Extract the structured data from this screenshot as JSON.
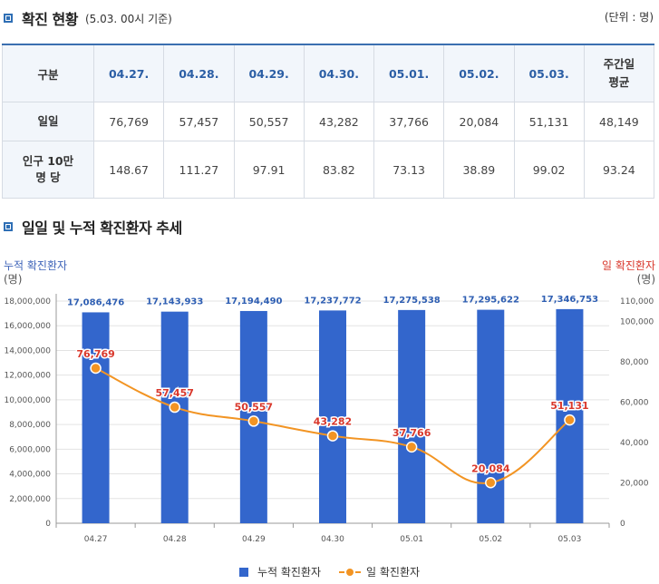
{
  "section1": {
    "title": "확진 현황",
    "note": "(5.03. 00시 기준)",
    "unit": "(단위 : 명)"
  },
  "table": {
    "headers": [
      "구분",
      "04.27.",
      "04.28.",
      "04.29.",
      "04.30.",
      "05.01.",
      "05.02.",
      "05.03.",
      "주간일 평균"
    ],
    "rows": [
      {
        "label": "일일",
        "values": [
          "76,769",
          "57,457",
          "50,557",
          "43,282",
          "37,766",
          "20,084",
          "51,131",
          "48,149"
        ]
      },
      {
        "label": "인구 10만 명 당",
        "values": [
          "148.67",
          "111.27",
          "97.91",
          "83.82",
          "73.13",
          "38.89",
          "99.02",
          "93.24"
        ]
      }
    ]
  },
  "section2": {
    "title": "일일 및 누적 확진환자 추세"
  },
  "chart_data": {
    "type": "bar+line",
    "categories": [
      "04.27",
      "04.28",
      "04.29",
      "04.30",
      "05.01",
      "05.02",
      "05.03"
    ],
    "y_left": {
      "label": "누적 확진환자",
      "unit": "(명)",
      "min": 0,
      "max": 18000000,
      "ticks": [
        0,
        2000000,
        4000000,
        6000000,
        8000000,
        10000000,
        12000000,
        14000000,
        16000000,
        18000000
      ],
      "tick_labels": [
        "0",
        "2,000,000",
        "4,000,000",
        "6,000,000",
        "8,000,000",
        "10,000,000",
        "12,000,000",
        "14,000,000",
        "16,000,000",
        "18,000,000"
      ]
    },
    "y_right": {
      "label": "일 확진환자",
      "unit": "(명)",
      "min": 0,
      "max": 110000,
      "ticks": [
        0,
        20000,
        40000,
        60000,
        80000,
        100000,
        110000
      ],
      "tick_labels": [
        "0",
        "20,000",
        "40,000",
        "60,000",
        "80,000",
        "100,000",
        "110,000"
      ]
    },
    "series": [
      {
        "name": "누적 확진환자",
        "type": "bar",
        "axis": "left",
        "color": "#3366cc",
        "values": [
          17086476,
          17143933,
          17194490,
          17237772,
          17275538,
          17295622,
          17346753
        ],
        "labels": [
          "17,086,476",
          "17,143,933",
          "17,194,490",
          "17,237,772",
          "17,275,538",
          "17,295,622",
          "17,346,753"
        ]
      },
      {
        "name": "일 확진환자",
        "type": "line",
        "axis": "right",
        "color": "#f29423",
        "label_color": "#d9382c",
        "values": [
          76769,
          57457,
          50557,
          43282,
          37766,
          20084,
          51131
        ],
        "labels": [
          "76,769",
          "57,457",
          "50,557",
          "43,282",
          "37,766",
          "20,084",
          "51,131"
        ]
      }
    ],
    "grid": true,
    "legend_position": "bottom"
  }
}
